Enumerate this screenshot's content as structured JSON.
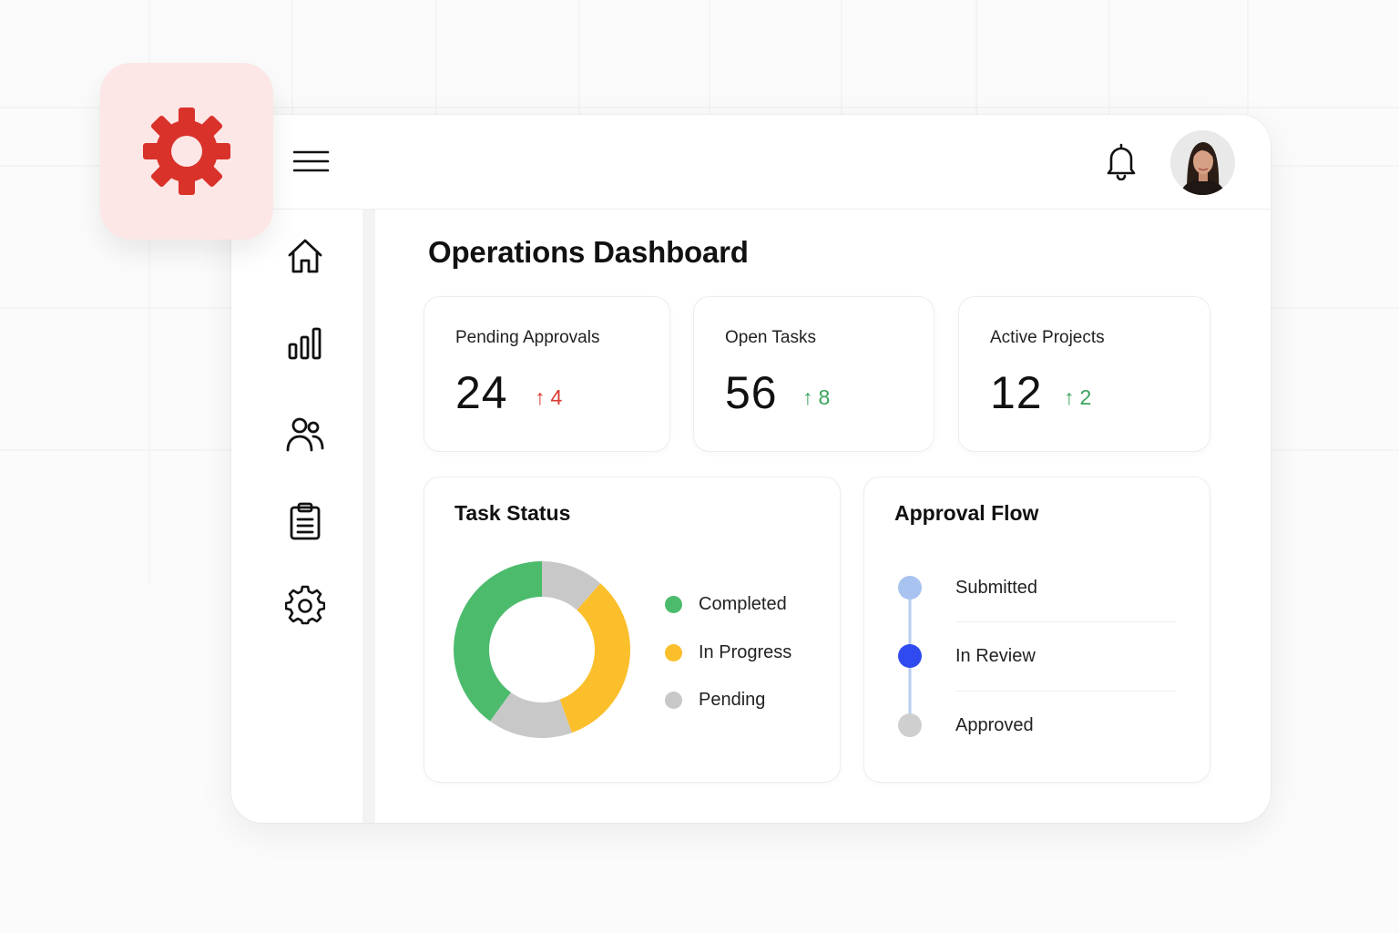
{
  "header": {
    "menu_icon": "hamburger-menu-icon",
    "notification_icon": "bell-icon",
    "avatar_icon": "user-avatar"
  },
  "app_badge": {
    "icon": "gear-icon",
    "color": "#d9322b",
    "background": "#fde6e6"
  },
  "sidebar": {
    "items": [
      {
        "icon": "home-icon",
        "name": "home"
      },
      {
        "icon": "bar-chart-icon",
        "name": "analytics"
      },
      {
        "icon": "users-icon",
        "name": "users"
      },
      {
        "icon": "clipboard-icon",
        "name": "tasks"
      },
      {
        "icon": "gear-icon",
        "name": "settings"
      }
    ]
  },
  "page": {
    "title": "Operations Dashboard"
  },
  "stats": [
    {
      "label": "Pending Approvals",
      "value": "24",
      "delta": "4",
      "trend": "up",
      "color": "#d93a2f"
    },
    {
      "label": "Open Tasks",
      "value": "56",
      "delta": "8",
      "trend": "up",
      "color": "#3aa45c"
    },
    {
      "label": "Active Projects",
      "value": "12",
      "delta": "2",
      "trend": "up",
      "color": "#3aa45c"
    }
  ],
  "task_status": {
    "title": "Task Status",
    "legend": [
      {
        "label": "Completed",
        "color": "#4cbb6c"
      },
      {
        "label": "In Progress",
        "color": "#fbbf2c"
      },
      {
        "label": "Pending",
        "color": "#c8c8c8"
      }
    ]
  },
  "approval_flow": {
    "title": "Approval Flow",
    "steps": [
      {
        "label": "Submitted",
        "color": "#a8c3ef"
      },
      {
        "label": "In Review",
        "color": "#2f4bf0"
      },
      {
        "label": "Approved",
        "color": "#cfcfcf"
      }
    ]
  },
  "chart_data": {
    "type": "pie",
    "title": "Task Status",
    "categories": [
      "Completed",
      "In Progress",
      "Pending"
    ],
    "values": [
      40,
      33,
      27
    ],
    "colors": [
      "#4cbb6c",
      "#fbbf2c",
      "#c8c8c8"
    ],
    "legend": "right"
  }
}
